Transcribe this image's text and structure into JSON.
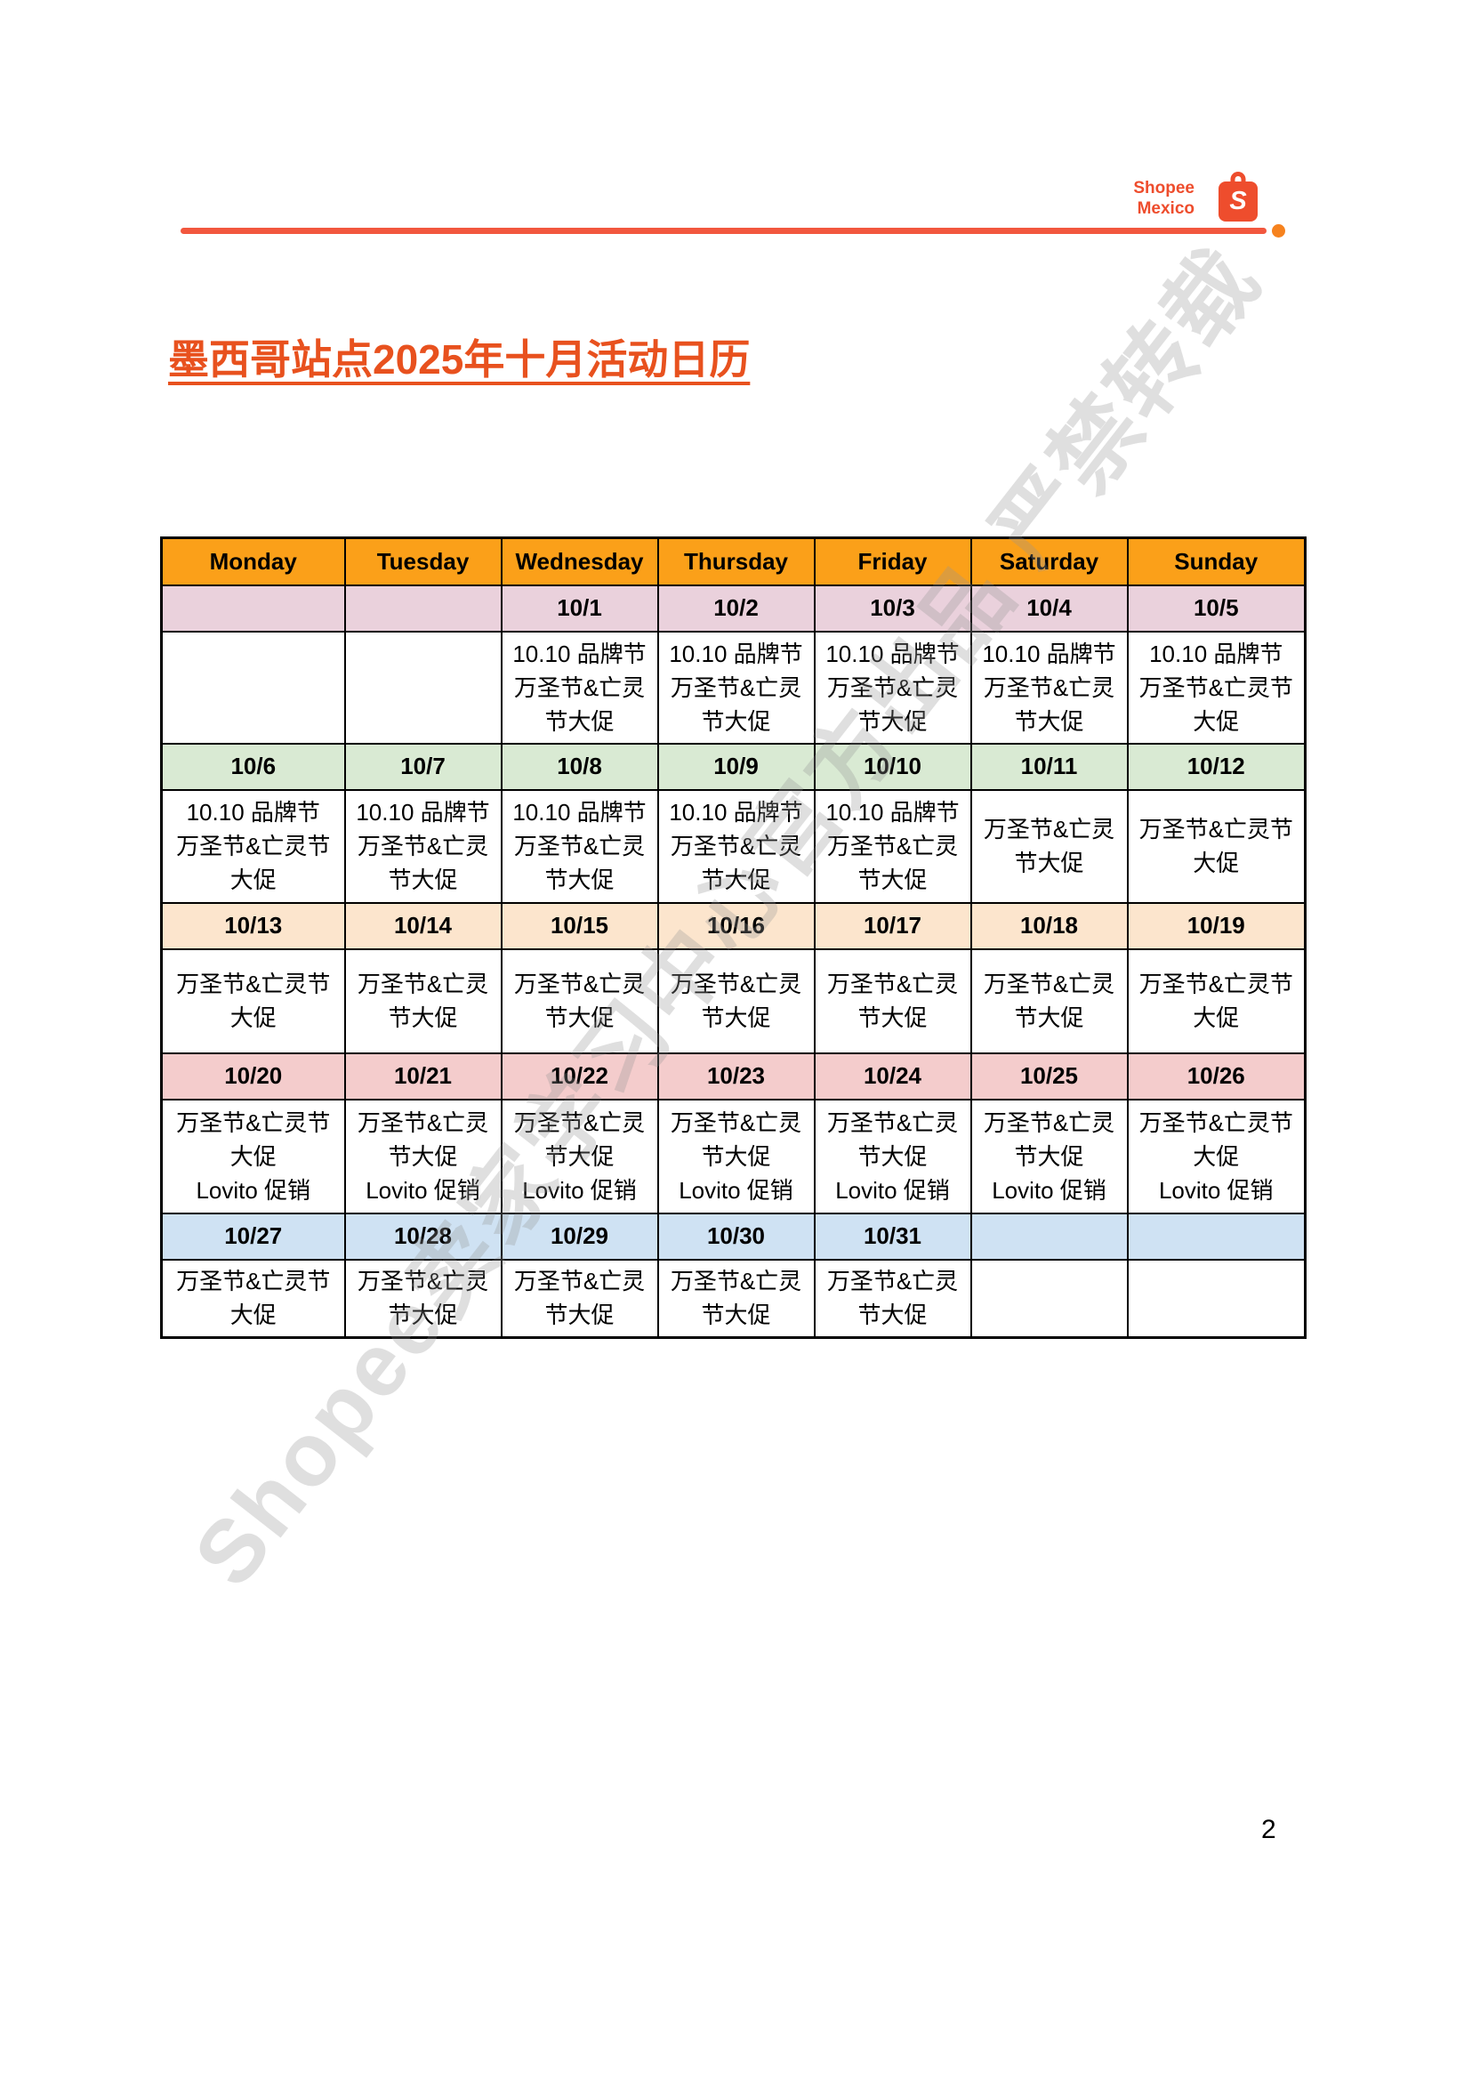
{
  "brand": {
    "name_line1": "Shopee",
    "name_line2": "Mexico",
    "bag_letter": "S"
  },
  "title": "墨西哥站点2025年十月活动日历",
  "watermark": "Shopee卖家学习中心官方出品 严禁转载",
  "page_number": "2",
  "colors": {
    "accent": "#EE4D2D",
    "line": "#F2573E",
    "dot": "#F6821E",
    "title_color": "#E8511E",
    "th_bg": "#FBA019",
    "wk1": "#EAD1DC",
    "wk2": "#D9EAD3",
    "wk3": "#FCE5CD",
    "wk4": "#F4CCCC",
    "wk5": "#CFE2F3"
  },
  "calendar": {
    "day_headers": [
      "Monday",
      "Tuesday",
      "Wednesday",
      "Thursday",
      "Friday",
      "Saturday",
      "Sunday"
    ],
    "weeks": [
      {
        "dates": [
          "",
          "",
          "10/1",
          "10/2",
          "10/3",
          "10/4",
          "10/5"
        ],
        "events": [
          "",
          "",
          "10.10 品牌节\n万圣节&亡灵\n节大促",
          "10.10 品牌节\n万圣节&亡灵\n节大促",
          "10.10 品牌节\n万圣节&亡灵\n节大促",
          "10.10 品牌节\n万圣节&亡灵\n节大促",
          "10.10 品牌节\n万圣节&亡灵节\n大促"
        ]
      },
      {
        "dates": [
          "10/6",
          "10/7",
          "10/8",
          "10/9",
          "10/10",
          "10/11",
          "10/12"
        ],
        "events": [
          "10.10 品牌节\n万圣节&亡灵节\n大促",
          "10.10 品牌节\n万圣节&亡灵\n节大促",
          "10.10 品牌节\n万圣节&亡灵\n节大促",
          "10.10 品牌节\n万圣节&亡灵\n节大促",
          "10.10 品牌节\n万圣节&亡灵\n节大促",
          "万圣节&亡灵\n节大促",
          "万圣节&亡灵节\n大促"
        ]
      },
      {
        "dates": [
          "10/13",
          "10/14",
          "10/15",
          "10/16",
          "10/17",
          "10/18",
          "10/19"
        ],
        "events": [
          "万圣节&亡灵节\n大促",
          "万圣节&亡灵\n节大促",
          "万圣节&亡灵\n节大促",
          "万圣节&亡灵\n节大促",
          "万圣节&亡灵\n节大促",
          "万圣节&亡灵\n节大促",
          "万圣节&亡灵节\n大促"
        ]
      },
      {
        "dates": [
          "10/20",
          "10/21",
          "10/22",
          "10/23",
          "10/24",
          "10/25",
          "10/26"
        ],
        "events": [
          "万圣节&亡灵节\n大促\nLovito 促销",
          "万圣节&亡灵\n节大促\nLovito 促销",
          "万圣节&亡灵\n节大促\nLovito 促销",
          "万圣节&亡灵\n节大促\nLovito 促销",
          "万圣节&亡灵\n节大促\nLovito 促销",
          "万圣节&亡灵\n节大促\nLovito 促销",
          "万圣节&亡灵节\n大促\nLovito 促销"
        ]
      },
      {
        "dates": [
          "10/27",
          "10/28",
          "10/29",
          "10/30",
          "10/31",
          "",
          ""
        ],
        "events": [
          "万圣节&亡灵节\n大促",
          "万圣节&亡灵\n节大促",
          "万圣节&亡灵\n节大促",
          "万圣节&亡灵\n节大促",
          "万圣节&亡灵\n节大促",
          "",
          ""
        ]
      }
    ]
  }
}
